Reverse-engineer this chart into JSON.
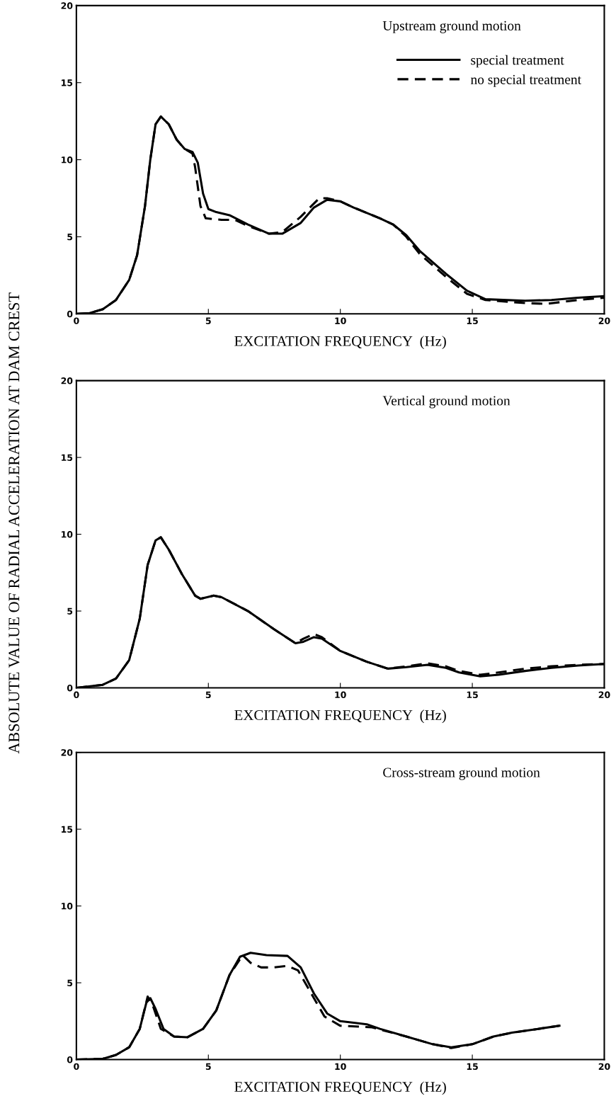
{
  "chart_data": [
    {
      "type": "line",
      "title": "Upstream ground motion",
      "xlabel": "EXCITATION FREQUENCY  (Hz)",
      "xlim": [
        0,
        20
      ],
      "ylim": [
        0,
        20
      ],
      "xticks": [
        0,
        5,
        10,
        15,
        20
      ],
      "yticks": [
        0,
        5,
        10,
        15,
        20
      ],
      "legend": "top right",
      "grid": false,
      "series": [
        {
          "name": "special treatment",
          "color": "#000000",
          "line_style": "solid",
          "x": [
            0,
            0.5,
            1,
            1.5,
            2,
            2.3,
            2.6,
            2.8,
            3.0,
            3.2,
            3.5,
            3.8,
            4.1,
            4.4,
            4.6,
            4.8,
            5.0,
            5.3,
            5.8,
            6.5,
            7.3,
            7.8,
            8.5,
            9.0,
            9.5,
            10,
            10.5,
            11.5,
            12,
            12.5,
            13,
            14,
            14.8,
            15.5,
            17,
            18,
            19,
            20
          ],
          "values": [
            0,
            0.05,
            0.3,
            0.9,
            2.2,
            3.8,
            7,
            10,
            12.3,
            12.8,
            12.3,
            11.3,
            10.7,
            10.5,
            9.8,
            7.8,
            6.8,
            6.6,
            6.4,
            5.8,
            5.2,
            5.2,
            5.9,
            6.9,
            7.4,
            7.3,
            6.9,
            6.2,
            5.8,
            5.1,
            4.1,
            2.6,
            1.5,
            0.95,
            0.85,
            0.9,
            1.05,
            1.15
          ]
        },
        {
          "name": "no special treatment",
          "color": "#000000",
          "line_style": "dashed",
          "x": [
            0,
            0.5,
            1,
            1.5,
            2,
            2.3,
            2.6,
            2.8,
            3.0,
            3.2,
            3.5,
            3.8,
            4.1,
            4.4,
            4.5,
            4.7,
            4.9,
            5.5,
            6.0,
            6.5,
            7.3,
            7.8,
            8.5,
            9.2,
            9.5,
            10,
            10.5,
            11.5,
            12,
            12.5,
            13,
            14,
            14.8,
            15.5,
            17,
            17.8,
            19,
            20
          ],
          "values": [
            0,
            0.05,
            0.3,
            0.9,
            2.2,
            3.8,
            7,
            10,
            12.3,
            12.8,
            12.3,
            11.3,
            10.7,
            10.4,
            9.5,
            7,
            6.2,
            6.1,
            6.1,
            5.7,
            5.2,
            5.3,
            6.3,
            7.5,
            7.5,
            7.3,
            6.9,
            6.2,
            5.8,
            5.0,
            3.9,
            2.4,
            1.3,
            0.9,
            0.7,
            0.65,
            0.9,
            1.05
          ]
        }
      ]
    },
    {
      "type": "line",
      "title": "Vertical ground motion",
      "xlabel": "EXCITATION FREQUENCY  (Hz)",
      "ylabel": "ABSOLUTE VALUE OF RADIAL ACCELERATION AT DAM CREST",
      "xlim": [
        0,
        20
      ],
      "ylim": [
        0,
        20
      ],
      "xticks": [
        0,
        5,
        10,
        15,
        20
      ],
      "yticks": [
        0,
        5,
        10,
        15,
        20
      ],
      "grid": false,
      "series": [
        {
          "color": "#000000",
          "line_style": "solid",
          "x": [
            0,
            1,
            1.5,
            2,
            2.4,
            2.7,
            3.0,
            3.2,
            3.5,
            4,
            4.5,
            4.7,
            5.2,
            5.5,
            6.5,
            7.5,
            8.3,
            8.6,
            9.0,
            9.3,
            10,
            11,
            11.8,
            12.5,
            13.3,
            14,
            14.5,
            15.3,
            16,
            17,
            18,
            19,
            20
          ],
          "values": [
            0,
            0.2,
            0.6,
            1.8,
            4.5,
            8,
            9.6,
            9.8,
            9.0,
            7.4,
            6.0,
            5.8,
            6.0,
            5.9,
            5.0,
            3.8,
            2.9,
            3.0,
            3.3,
            3.2,
            2.4,
            1.7,
            1.25,
            1.35,
            1.5,
            1.3,
            1.0,
            0.75,
            0.85,
            1.1,
            1.3,
            1.45,
            1.55
          ]
        },
        {
          "color": "#000000",
          "line_style": "dashed",
          "x": [
            0,
            1,
            1.5,
            2,
            2.4,
            2.7,
            3.0,
            3.2,
            3.5,
            4,
            4.5,
            4.7,
            5.2,
            5.5,
            6.5,
            7.5,
            8.3,
            8.6,
            9.0,
            9.3,
            10,
            11,
            11.8,
            12.5,
            13.3,
            14,
            14.5,
            15.3,
            16,
            17,
            18,
            19,
            20
          ],
          "values": [
            0,
            0.2,
            0.6,
            1.8,
            4.5,
            8,
            9.6,
            9.8,
            9.0,
            7.4,
            6.0,
            5.8,
            6.0,
            5.9,
            5.0,
            3.8,
            2.9,
            3.2,
            3.5,
            3.3,
            2.4,
            1.7,
            1.25,
            1.4,
            1.6,
            1.4,
            1.1,
            0.85,
            1.0,
            1.25,
            1.4,
            1.5,
            1.55
          ]
        }
      ]
    },
    {
      "type": "line",
      "title": "Cross-stream ground motion",
      "xlabel": "EXCITATION FREQUENCY  (Hz)",
      "xlim": [
        0,
        20
      ],
      "ylim": [
        0,
        20
      ],
      "xticks": [
        0,
        5,
        10,
        15,
        20
      ],
      "yticks": [
        0,
        5,
        10,
        15,
        20
      ],
      "grid": false,
      "series": [
        {
          "color": "#000000",
          "line_style": "solid",
          "x": [
            0,
            1,
            1.5,
            2,
            2.4,
            2.65,
            2.8,
            3.0,
            3.3,
            3.7,
            4.2,
            4.8,
            5.3,
            5.8,
            6.2,
            6.6,
            7.2,
            8.0,
            8.5,
            9.0,
            9.5,
            10,
            11,
            11.5,
            12.5,
            13.5,
            14.2,
            15,
            15.8,
            16.5,
            17.5,
            18.3
          ],
          "values": [
            0,
            0.05,
            0.3,
            0.8,
            2,
            3.7,
            4.0,
            3.3,
            2.0,
            1.5,
            1.45,
            2.0,
            3.2,
            5.5,
            6.7,
            6.95,
            6.8,
            6.75,
            6.0,
            4.3,
            3.0,
            2.5,
            2.3,
            2.0,
            1.5,
            1.0,
            0.8,
            1.0,
            1.5,
            1.75,
            2.0,
            2.2
          ]
        },
        {
          "color": "#000000",
          "line_style": "dashed",
          "x": [
            0,
            1,
            1.5,
            2,
            2.4,
            2.7,
            2.9,
            3.2,
            3.7,
            4.2,
            4.8,
            5.3,
            5.8,
            6.3,
            6.6,
            7.0,
            7.5,
            8.0,
            8.4,
            8.9,
            9.4,
            10,
            10.7,
            11.2,
            12.5,
            13.5,
            14.2,
            15,
            15.8,
            16.5,
            17.5,
            18.3
          ],
          "values": [
            0,
            0.05,
            0.3,
            0.8,
            2,
            4.1,
            3.5,
            2.0,
            1.5,
            1.45,
            2.0,
            3.2,
            5.5,
            6.8,
            6.3,
            6.0,
            6.0,
            6.1,
            5.8,
            4.3,
            2.8,
            2.2,
            2.15,
            2.1,
            1.5,
            1.0,
            0.75,
            1.0,
            1.5,
            1.75,
            2.0,
            2.2
          ]
        }
      ]
    }
  ]
}
